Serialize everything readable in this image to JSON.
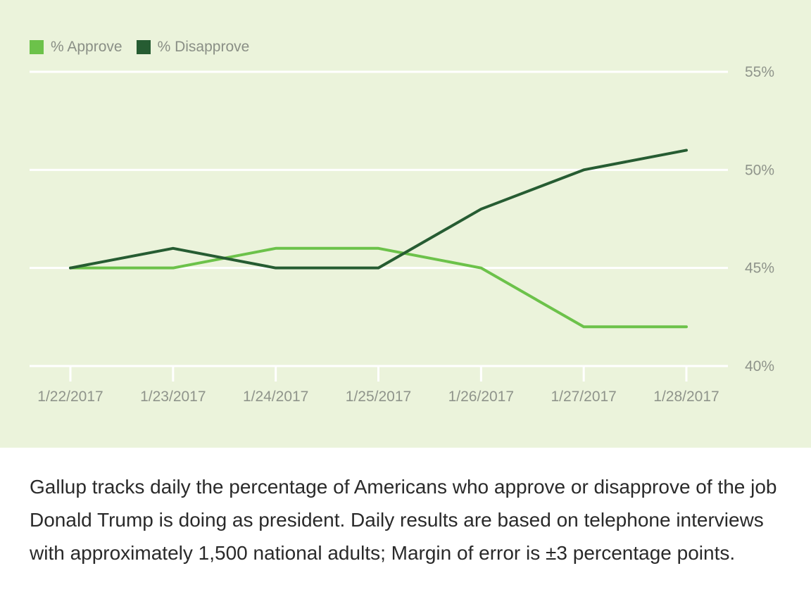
{
  "legend": [
    {
      "label": "% Approve",
      "color": "#6cc24a"
    },
    {
      "label": "% Disapprove",
      "color": "#265c32"
    }
  ],
  "chart_data": {
    "type": "line",
    "x": [
      "1/22/2017",
      "1/23/2017",
      "1/24/2017",
      "1/25/2017",
      "1/26/2017",
      "1/27/2017",
      "1/28/2017"
    ],
    "series": [
      {
        "name": "% Approve",
        "color": "#6cc24a",
        "values": [
          45,
          45,
          46,
          46,
          45,
          42,
          42
        ]
      },
      {
        "name": "% Disapprove",
        "color": "#265c32",
        "values": [
          45,
          46,
          45,
          45,
          48,
          50,
          51
        ]
      }
    ],
    "yticks": [
      40,
      45,
      50,
      55
    ],
    "ytick_labels": [
      "40%",
      "45%",
      "50%",
      "55%"
    ],
    "ylim": [
      40,
      55
    ],
    "grid": true,
    "legend_position": "top-left"
  },
  "caption": "Gallup tracks daily the percentage of Americans who approve or disapprove of the job Donald Trump is doing as president. Daily results are based on telephone interviews with approximately 1,500 national adults; Margin of error is ±3 percentage points."
}
